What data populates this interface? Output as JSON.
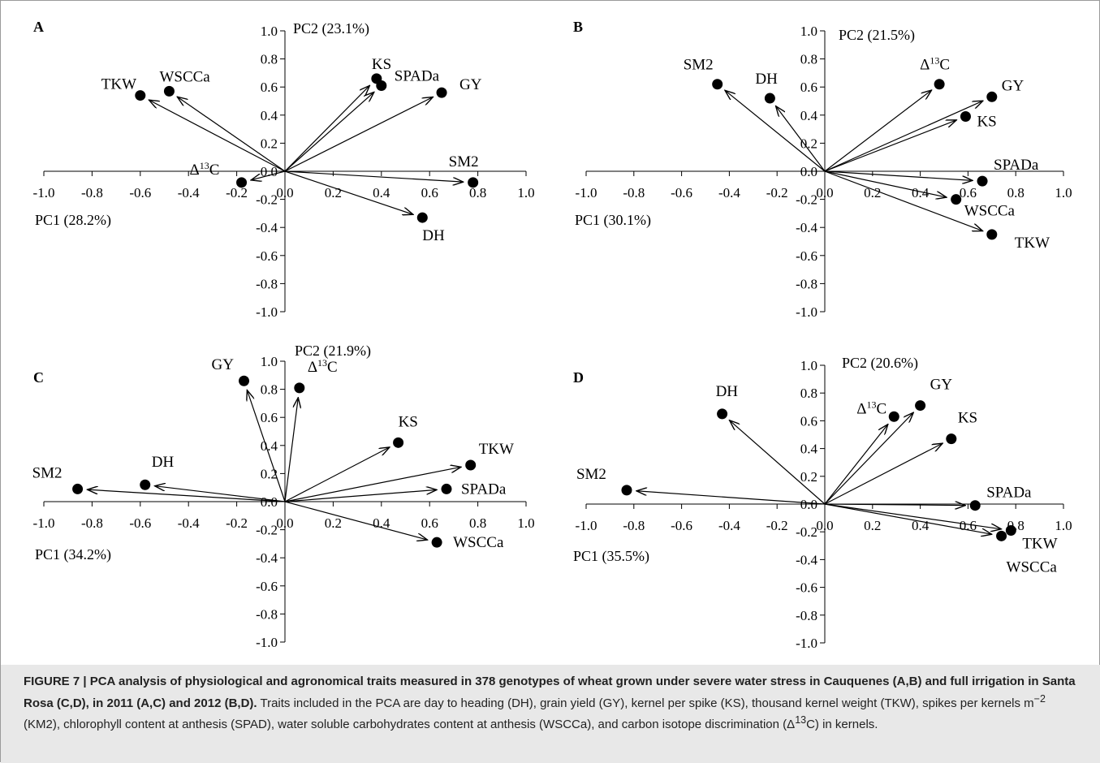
{
  "chart_data": [
    {
      "type": "scatter",
      "panel_label": "A",
      "xlabel": "PC1 (28.2%)",
      "ylabel": "PC2 (23.1%)",
      "xlim": [
        -1.0,
        1.0
      ],
      "ylim": [
        -1.0,
        1.0
      ],
      "xticks": [
        "-1.0",
        "-0.8",
        "-0.6",
        "-0.4",
        "-0.2",
        "0.0",
        "0.2",
        "0.4",
        "0.6",
        "0.8",
        "1.0"
      ],
      "yticks": [
        "1.0",
        "0.8",
        "0.6",
        "0.4",
        "0.2",
        "0.0",
        "-0.2",
        "-0.4",
        "-0.6",
        "-0.8",
        "-1.0"
      ],
      "points": [
        {
          "label": "TKW",
          "x": -0.6,
          "y": 0.54
        },
        {
          "label": "WSCCa",
          "x": -0.48,
          "y": 0.57
        },
        {
          "label": "KS",
          "x": 0.38,
          "y": 0.66
        },
        {
          "label": "SPADa",
          "x": 0.4,
          "y": 0.61
        },
        {
          "label": "GY",
          "x": 0.65,
          "y": 0.56
        },
        {
          "label": "SM2",
          "x": 0.78,
          "y": -0.08
        },
        {
          "label": "DH",
          "x": 0.57,
          "y": -0.33
        },
        {
          "label": "Δ13C",
          "x": -0.18,
          "y": -0.08
        }
      ]
    },
    {
      "type": "scatter",
      "panel_label": "B",
      "xlabel": "PC1 (30.1%)",
      "ylabel": "PC2 (21.5%)",
      "xlim": [
        -1.0,
        1.0
      ],
      "ylim": [
        -1.0,
        1.0
      ],
      "xticks": [
        "-1.0",
        "-0.8",
        "-0.6",
        "-0.4",
        "-0.2",
        "0.0",
        "0.2",
        "0.4",
        "0.6",
        "0.8",
        "1.0"
      ],
      "yticks": [
        "1.0",
        "0.8",
        "0.6",
        "0.4",
        "0.2",
        "0.0",
        "-0.2",
        "-0.4",
        "-0.6",
        "-0.8",
        "-1.0"
      ],
      "points": [
        {
          "label": "SM2",
          "x": -0.45,
          "y": 0.62
        },
        {
          "label": "DH",
          "x": -0.23,
          "y": 0.52
        },
        {
          "label": "Δ13C",
          "x": 0.48,
          "y": 0.62
        },
        {
          "label": "GY",
          "x": 0.7,
          "y": 0.53
        },
        {
          "label": "KS",
          "x": 0.59,
          "y": 0.39
        },
        {
          "label": "SPADa",
          "x": 0.66,
          "y": -0.07
        },
        {
          "label": "WSCCa",
          "x": 0.55,
          "y": -0.2
        },
        {
          "label": "TKW",
          "x": 0.7,
          "y": -0.45
        }
      ]
    },
    {
      "type": "scatter",
      "panel_label": "C",
      "xlabel": "PC1 (34.2%)",
      "ylabel": "PC2 (21.9%)",
      "xlim": [
        -1.0,
        1.0
      ],
      "ylim": [
        -1.0,
        1.0
      ],
      "xticks": [
        "-1.0",
        "-0.8",
        "-0.6",
        "-0.4",
        "-0.2",
        "0.0",
        "0.2",
        "0.4",
        "0.6",
        "0.8",
        "1.0"
      ],
      "yticks": [
        "1.0",
        "0.8",
        "0.6",
        "0.4",
        "0.2",
        "0.0",
        "-0.2",
        "-0.4",
        "-0.6",
        "-0.8",
        "-1.0"
      ],
      "points": [
        {
          "label": "GY",
          "x": -0.17,
          "y": 0.86
        },
        {
          "label": "Δ13C",
          "x": 0.06,
          "y": 0.81
        },
        {
          "label": "KS",
          "x": 0.47,
          "y": 0.42
        },
        {
          "label": "TKW",
          "x": 0.77,
          "y": 0.26
        },
        {
          "label": "SPADa",
          "x": 0.67,
          "y": 0.09
        },
        {
          "label": "WSCCa",
          "x": 0.63,
          "y": -0.29
        },
        {
          "label": "SM2",
          "x": -0.86,
          "y": 0.09
        },
        {
          "label": "DH",
          "x": -0.58,
          "y": 0.12
        }
      ]
    },
    {
      "type": "scatter",
      "panel_label": "D",
      "xlabel": "PC1 (35.5%)",
      "ylabel": "PC2 (20.6%)",
      "xlim": [
        -1.0,
        1.0
      ],
      "ylim": [
        -1.0,
        1.0
      ],
      "xticks": [
        "-1.0",
        "-0.8",
        "-0.6",
        "-0.4",
        "-0.2",
        "0.0",
        "0.2",
        "0.4",
        "0.6",
        "0.8",
        "1.0"
      ],
      "yticks": [
        "1.0",
        "0.8",
        "0.6",
        "0.4",
        "0.2",
        "0.0",
        "-0.2",
        "-0.4",
        "-0.6",
        "-0.8",
        "-1.0"
      ],
      "points": [
        {
          "label": "DH",
          "x": -0.43,
          "y": 0.65
        },
        {
          "label": "Δ13C",
          "x": 0.29,
          "y": 0.63
        },
        {
          "label": "GY",
          "x": 0.4,
          "y": 0.71
        },
        {
          "label": "KS",
          "x": 0.53,
          "y": 0.47
        },
        {
          "label": "SM2",
          "x": -0.83,
          "y": 0.1
        },
        {
          "label": "SPADa",
          "x": 0.63,
          "y": -0.01
        },
        {
          "label": "TKW",
          "x": 0.78,
          "y": -0.19
        },
        {
          "label": "WSCCa",
          "x": 0.74,
          "y": -0.23
        }
      ]
    }
  ],
  "caption": {
    "title": "FIGURE 7 | PCA analysis of physiological and agronomical traits measured in 378 genotypes of wheat grown under severe water stress in Cauquenes (A,B) and full irrigation in Santa Rosa (C,D), in 2011 (A,C) and 2012 (B,D).",
    "body_1": " Traits included in the PCA are day to heading (DH), grain yield (GY), kernel per spike (KS), thousand kernel weight (TKW), spikes per kernels m",
    "sup_1": "−2",
    "body_2": " (KM2), chlorophyll content at anthesis (SPAD), water soluble carbohydrates content at anthesis (WSCCa), and carbon isotope discrimination (Δ",
    "sup_2": "13",
    "body_3": "C) in kernels."
  }
}
